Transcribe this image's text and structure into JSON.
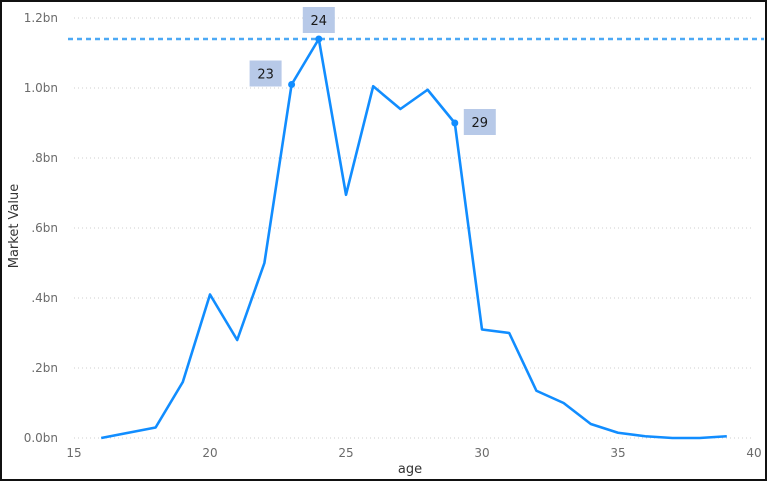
{
  "chart_data": {
    "type": "line",
    "title": "",
    "xlabel": "age",
    "ylabel": "Market Value",
    "xlim": [
      15,
      40
    ],
    "ylim": [
      0,
      1.2
    ],
    "x_ticks": [
      15,
      20,
      25,
      30,
      35,
      40
    ],
    "y_ticks": [
      {
        "value": 0.0,
        "label": "0.0bn"
      },
      {
        "value": 0.2,
        "label": ".2bn"
      },
      {
        "value": 0.4,
        "label": ".4bn"
      },
      {
        "value": 0.6,
        "label": ".6bn"
      },
      {
        "value": 0.8,
        "label": ".8bn"
      },
      {
        "value": 1.0,
        "label": "1.0bn"
      },
      {
        "value": 1.2,
        "label": "1.2bn"
      }
    ],
    "grid": "horizontal-dotted",
    "series": [
      {
        "color": "#118DFF",
        "x": [
          16,
          17,
          18,
          19,
          20,
          21,
          22,
          23,
          24,
          25,
          26,
          27,
          28,
          29,
          30,
          31,
          32,
          33,
          34,
          35,
          36,
          37,
          38,
          39
        ],
        "y": [
          0.0,
          0.015,
          0.03,
          0.16,
          0.41,
          0.28,
          0.5,
          1.01,
          1.14,
          0.695,
          1.005,
          0.94,
          0.995,
          0.9,
          0.31,
          0.3,
          0.135,
          0.1,
          0.04,
          0.015,
          0.005,
          0.0,
          0.0,
          0.005
        ]
      }
    ],
    "reference_line": {
      "value": 1.14,
      "color": "#4DA9F5",
      "style": "dashed"
    },
    "annotations": [
      {
        "x": 23,
        "y": 1.01,
        "label": "23",
        "side": "left"
      },
      {
        "x": 24,
        "y": 1.14,
        "label": "24",
        "side": "top"
      },
      {
        "x": 29,
        "y": 0.9,
        "label": "29",
        "side": "right"
      }
    ],
    "callout_color": "#B7C9E8"
  }
}
